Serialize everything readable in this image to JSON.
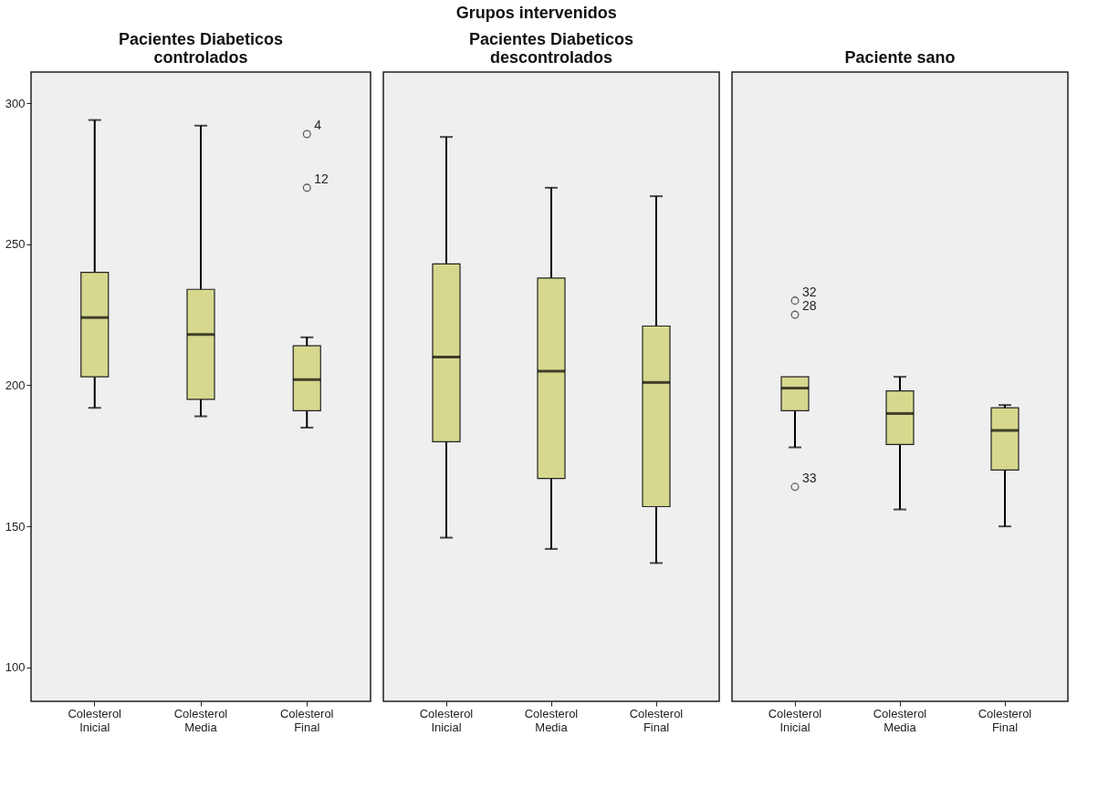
{
  "chart_data": [
    {
      "type": "box",
      "title": [
        "Pacientes Diabeticos",
        "controlados"
      ],
      "categories": [
        "Colesterol Inicial",
        "Colesterol Media",
        "Colesterol Final"
      ],
      "ylim": [
        88,
        311
      ],
      "yticks": [
        100,
        150,
        200,
        250,
        300
      ],
      "grid": false,
      "series": [
        {
          "color": "#d6d88e",
          "boxes": [
            {
              "low": 192,
              "q1": 203,
              "median": 224,
              "q3": 240,
              "high": 294
            },
            {
              "low": 189,
              "q1": 195,
              "median": 218,
              "q3": 234,
              "high": 292
            },
            {
              "low": 185,
              "q1": 191,
              "median": 202,
              "q3": 214,
              "high": 217,
              "outliers": [
                289,
                270
              ]
            }
          ]
        }
      ],
      "annotations": [
        "Grupos intervenidos",
        "4",
        "12"
      ]
    },
    {
      "type": "box",
      "title": [
        "Pacientes Diabeticos",
        "descontrolados"
      ],
      "categories": [
        "Colesterol Inicial",
        "Colesterol Media",
        "Colesterol Final"
      ],
      "ylim": [
        88,
        311
      ],
      "tick_labels": "x",
      "grid": false,
      "series": [
        {
          "color": "#d6d88e",
          "boxes": [
            {
              "low": 146,
              "q1": 180,
              "median": 210,
              "q3": 243,
              "high": 288
            },
            {
              "low": 142,
              "q1": 167,
              "median": 205,
              "q3": 238,
              "high": 270
            },
            {
              "low": 137,
              "q1": 157,
              "median": 201,
              "q3": 221,
              "high": 267
            }
          ]
        }
      ]
    },
    {
      "type": "box",
      "title": "Paciente sano",
      "categories": [
        "Colesterol Inicial",
        "Colesterol Media",
        "Colesterol Final"
      ],
      "ylim": [
        88,
        311
      ],
      "tick_labels": "x",
      "grid": false,
      "series": [
        {
          "color": "#d6d88e",
          "boxes": [
            {
              "low": 178,
              "q1": 191,
              "median": 199,
              "q3": 203,
              "high": 203,
              "outliers": [
                230,
                225,
                164
              ]
            },
            {
              "low": 156,
              "q1": 179,
              "median": 190,
              "q3": 198,
              "high": 203
            },
            {
              "low": 150,
              "q1": 170,
              "median": 184,
              "q3": 192,
              "high": 193
            }
          ]
        }
      ],
      "annotations": [
        "32",
        "28",
        "33"
      ]
    }
  ]
}
